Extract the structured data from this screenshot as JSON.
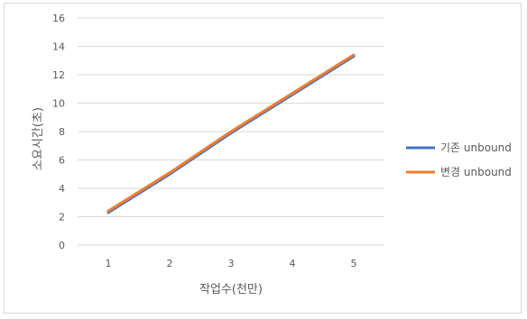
{
  "chart_data": {
    "type": "line",
    "title": "",
    "xlabel": "작업수(천만)",
    "ylabel": "소요시간(초)",
    "categories": [
      "1",
      "2",
      "3",
      "4",
      "5"
    ],
    "ylim": [
      0,
      16
    ],
    "yticks": [
      "0",
      "2",
      "4",
      "6",
      "8",
      "10",
      "12",
      "14",
      "16"
    ],
    "grid": true,
    "legend_position": "right",
    "series": [
      {
        "name": "기존 unbound",
        "color": "#4472c4",
        "values": [
          2.3,
          5.0,
          7.9,
          10.6,
          13.3
        ]
      },
      {
        "name": "변경 unbound",
        "color": "#ed7d31",
        "values": [
          2.4,
          5.1,
          8.0,
          10.7,
          13.4
        ]
      }
    ]
  }
}
